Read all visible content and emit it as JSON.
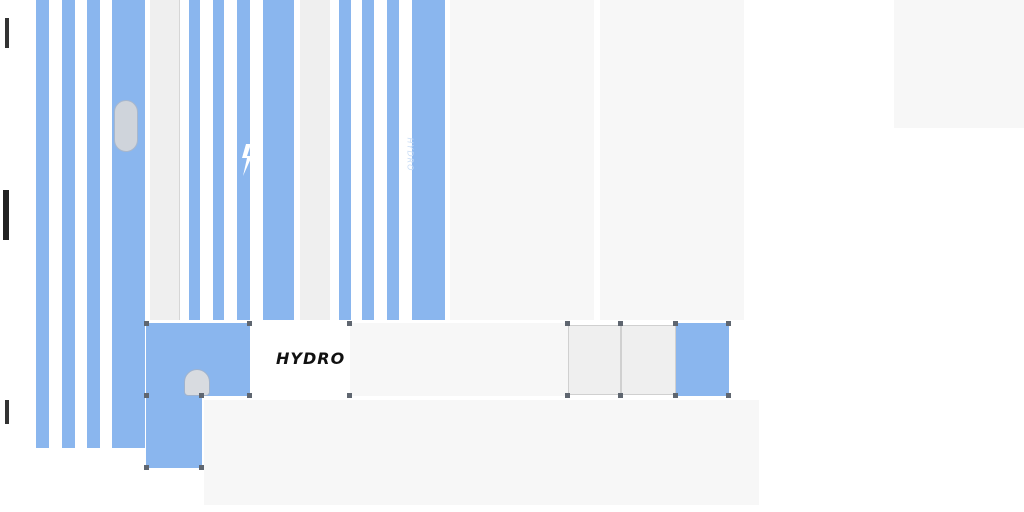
{
  "texture": {
    "logo_text": "HYDRO",
    "sleeve_mark": "HYDRO"
  },
  "colors": {
    "stripe_blue": "#8ab6ee",
    "stripe_blue_dark": "#7ea9e4",
    "white": "#ffffff",
    "panel_light": "#f7f7f7",
    "panel_grey": "#efefef",
    "marker": "#5f6670",
    "ink": "#111111"
  },
  "icons": {
    "collar_hole": "collar-hole-icon",
    "lightning_logo": "lightning-logo-icon",
    "uv_markers": "uv-marker-icon"
  }
}
